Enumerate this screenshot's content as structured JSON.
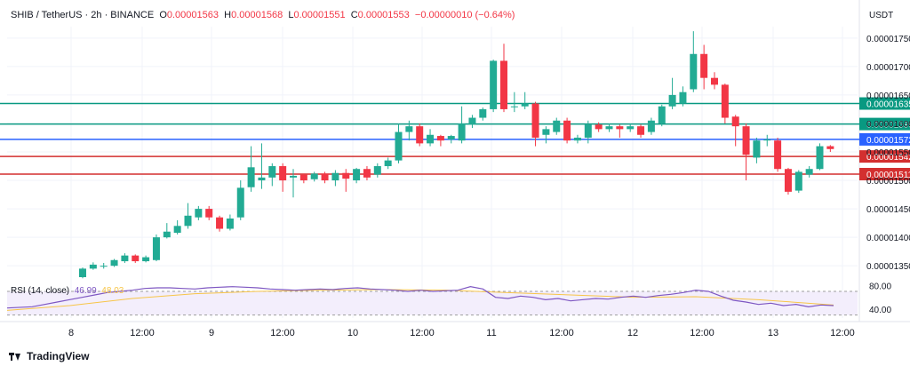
{
  "header": {
    "symbol": "SHIB / TetherUS · 2h · BINANCE",
    "open_label": "O",
    "open": "0.00001563",
    "high_label": "H",
    "high": "0.00001568",
    "low_label": "L",
    "low": "0.00001551",
    "close_label": "C",
    "close": "0.00001553",
    "change": "−0.00000010 (−0.64%)"
  },
  "unit": "USDT",
  "rsi": {
    "label": "RSI (14, close)",
    "value1": "46.99",
    "value2": "48.03"
  },
  "brand": "TradingView",
  "colors": {
    "up": "#22ab94",
    "down": "#f23645",
    "rsi": "#7e57c2",
    "rsi_ma": "#f7c548",
    "support_green": "#089981",
    "pivot_blue": "#2962ff",
    "resist_red": "#d32f2f"
  },
  "chart_data": {
    "type": "candlestick",
    "ylim": [
      1.33e-05,
      1.77e-05
    ],
    "y_ticks": [
      "0.00001750",
      "0.00001700",
      "0.00001650",
      "0.00001600",
      "0.00001550",
      "0.00001500",
      "0.00001450",
      "0.00001400",
      "0.00001350"
    ],
    "x_ticks": [
      "8",
      "12:00",
      "9",
      "12:00",
      "10",
      "12:00",
      "11",
      "12:00",
      "12",
      "12:00",
      "13",
      "12:00"
    ],
    "levels": [
      {
        "value": 1.635e-05,
        "label": "0.00001635",
        "color": "#089981"
      },
      {
        "value": 1.599e-05,
        "label": "0.00001599",
        "color": "#089981"
      },
      {
        "value": 1.572e-05,
        "label": "0.00001572",
        "color": "#2962ff"
      },
      {
        "value": 1.542e-05,
        "label": "0.00001542",
        "color": "#d32f2f"
      },
      {
        "value": 1.511e-05,
        "label": "0.00001511",
        "color": "#d32f2f"
      }
    ],
    "candles": [
      [
        1.0,
        1.33e-05,
        1.345e-05,
        1.328e-05,
        1.347e-05
      ],
      [
        2.0,
        1.345e-05,
        1.352e-05,
        1.343e-05,
        1.356e-05
      ],
      [
        3.0,
        1.35e-05,
        1.35e-05,
        1.345e-05,
        1.355e-05
      ],
      [
        4.0,
        1.35e-05,
        1.36e-05,
        1.348e-05,
        1.362e-05
      ],
      [
        5.0,
        1.358e-05,
        1.368e-05,
        1.355e-05,
        1.372e-05
      ],
      [
        6.0,
        1.368e-05,
        1.358e-05,
        1.355e-05,
        1.37e-05
      ],
      [
        7.0,
        1.358e-05,
        1.365e-05,
        1.356e-05,
        1.368e-05
      ],
      [
        8.0,
        1.36e-05,
        1.4e-05,
        1.358e-05,
        1.405e-05
      ],
      [
        9.0,
        1.4e-05,
        1.41e-05,
        1.398e-05,
        1.425e-05
      ],
      [
        10.0,
        1.408e-05,
        1.42e-05,
        1.405e-05,
        1.43e-05
      ],
      [
        11.0,
        1.42e-05,
        1.438e-05,
        1.415e-05,
        1.46e-05
      ],
      [
        12.0,
        1.435e-05,
        1.45e-05,
        1.43e-05,
        1.455e-05
      ],
      [
        13.0,
        1.45e-05,
        1.435e-05,
        1.43e-05,
        1.455e-05
      ],
      [
        14.0,
        1.435e-05,
        1.415e-05,
        1.41e-05,
        1.438e-05
      ],
      [
        15.0,
        1.415e-05,
        1.433e-05,
        1.412e-05,
        1.44e-05
      ],
      [
        16.0,
        1.435e-05,
        1.487e-05,
        1.43e-05,
        1.5e-05
      ],
      [
        17.0,
        1.488e-05,
        1.523e-05,
        1.48e-05,
        1.56e-05
      ],
      [
        18.0,
        1.5e-05,
        1.505e-05,
        1.485e-05,
        1.565e-05
      ],
      [
        19.0,
        1.505e-05,
        1.525e-05,
        1.49e-05,
        1.53e-05
      ],
      [
        20.0,
        1.525e-05,
        1.5e-05,
        1.48e-05,
        1.53e-05
      ],
      [
        21.0,
        1.505e-05,
        1.508e-05,
        1.47e-05,
        1.52e-05
      ],
      [
        22.0,
        1.51e-05,
        1.5e-05,
        1.495e-05,
        1.512e-05
      ],
      [
        23.0,
        1.502e-05,
        1.512e-05,
        1.498e-05,
        1.515e-05
      ],
      [
        24.0,
        1.512e-05,
        1.5e-05,
        1.495e-05,
        1.515e-05
      ],
      [
        25.0,
        1.5e-05,
        1.513e-05,
        1.49e-05,
        1.518e-05
      ],
      [
        26.0,
        1.513e-05,
        1.503e-05,
        1.48e-05,
        1.52e-05
      ],
      [
        27.0,
        1.5e-05,
        1.52e-05,
        1.495e-05,
        1.522e-05
      ],
      [
        28.0,
        1.52e-05,
        1.505e-05,
        1.5e-05,
        1.525e-05
      ],
      [
        29.0,
        1.51e-05,
        1.525e-05,
        1.505e-05,
        1.53e-05
      ],
      [
        30.0,
        1.525e-05,
        1.535e-05,
        1.52e-05,
        1.54e-05
      ],
      [
        31.0,
        1.535e-05,
        1.585e-05,
        1.53e-05,
        1.6e-05
      ],
      [
        32.0,
        1.585e-05,
        1.595e-05,
        1.57e-05,
        1.605e-05
      ],
      [
        33.0,
        1.595e-05,
        1.565e-05,
        1.56e-05,
        1.6e-05
      ],
      [
        34.0,
        1.565e-05,
        1.58e-05,
        1.56e-05,
        1.59e-05
      ],
      [
        35.0,
        1.578e-05,
        1.57e-05,
        1.56e-05,
        1.58e-05
      ],
      [
        36.0,
        1.572e-05,
        1.578e-05,
        1.565e-05,
        1.58e-05
      ],
      [
        37.0,
        1.57e-05,
        1.6e-05,
        1.565e-05,
        1.63e-05
      ],
      [
        38.0,
        1.598e-05,
        1.61e-05,
        1.592e-05,
        1.615e-05
      ],
      [
        39.0,
        1.61e-05,
        1.625e-05,
        1.605e-05,
        1.628e-05
      ],
      [
        40.0,
        1.625e-05,
        1.71e-05,
        1.62e-05,
        1.712e-05
      ],
      [
        41.0,
        1.71e-05,
        1.625e-05,
        1.62e-05,
        1.74e-05
      ],
      [
        42.0,
        1.63e-05,
        1.63e-05,
        1.62e-05,
        1.655e-05
      ],
      [
        43.0,
        1.63e-05,
        1.635e-05,
        1.625e-05,
        1.655e-05
      ],
      [
        44.0,
        1.635e-05,
        1.575e-05,
        1.56e-05,
        1.638e-05
      ],
      [
        45.0,
        1.58e-05,
        1.59e-05,
        1.565e-05,
        1.595e-05
      ],
      [
        46.0,
        1.585e-05,
        1.605e-05,
        1.58e-05,
        1.61e-05
      ],
      [
        47.0,
        1.605e-05,
        1.57e-05,
        1.565e-05,
        1.61e-05
      ],
      [
        48.0,
        1.57e-05,
        1.575e-05,
        1.565e-05,
        1.58e-05
      ],
      [
        49.0,
        1.575e-05,
        1.598e-05,
        1.565e-05,
        1.605e-05
      ],
      [
        50.0,
        1.598e-05,
        1.59e-05,
        1.585e-05,
        1.602e-05
      ],
      [
        51.0,
        1.59e-05,
        1.595e-05,
        1.585e-05,
        1.6e-05
      ],
      [
        52.0,
        1.595e-05,
        1.59e-05,
        1.575e-05,
        1.598e-05
      ],
      [
        53.0,
        1.59e-05,
        1.595e-05,
        1.585e-05,
        1.6e-05
      ],
      [
        54.0,
        1.595e-05,
        1.58e-05,
        1.575e-05,
        1.598e-05
      ],
      [
        55.0,
        1.585e-05,
        1.605e-05,
        1.58e-05,
        1.61e-05
      ],
      [
        56.0,
        1.6e-05,
        1.63e-05,
        1.595e-05,
        1.633e-05
      ],
      [
        57.0,
        1.63e-05,
        1.65e-05,
        1.625e-05,
        1.68e-05
      ],
      [
        58.0,
        1.635e-05,
        1.655e-05,
        1.63e-05,
        1.665e-05
      ],
      [
        59.0,
        1.66e-05,
        1.722e-05,
        1.655e-05,
        1.762e-05
      ],
      [
        60.0,
        1.722e-05,
        1.68e-05,
        1.66e-05,
        1.738e-05
      ],
      [
        61.0,
        1.68e-05,
        1.668e-05,
        1.66e-05,
        1.69e-05
      ],
      [
        62.0,
        1.668e-05,
        1.61e-05,
        1.6e-05,
        1.67e-05
      ],
      [
        63.0,
        1.612e-05,
        1.595e-05,
        1.56e-05,
        1.615e-05
      ],
      [
        64.0,
        1.595e-05,
        1.545e-05,
        1.5e-05,
        1.6e-05
      ],
      [
        65.0,
        1.54e-05,
        1.57e-05,
        1.53e-05,
        1.575e-05
      ],
      [
        66.0,
        1.57e-05,
        1.572e-05,
        1.56e-05,
        1.58e-05
      ],
      [
        67.0,
        1.57e-05,
        1.52e-05,
        1.515e-05,
        1.575e-05
      ],
      [
        68.0,
        1.52e-05,
        1.48e-05,
        1.475e-05,
        1.522e-05
      ],
      [
        69.0,
        1.482e-05,
        1.515e-05,
        1.478e-05,
        1.518e-05
      ],
      [
        70.0,
        1.51e-05,
        1.52e-05,
        1.505e-05,
        1.525e-05
      ],
      [
        71.0,
        1.52e-05,
        1.56e-05,
        1.518e-05,
        1.565e-05
      ],
      [
        72.0,
        1.56e-05,
        1.555e-05,
        1.55e-05,
        1.562e-05
      ]
    ],
    "rsi_ticks": [
      "80.00",
      "40.00"
    ],
    "rsi_band": [
      30,
      70
    ],
    "rsi_ylim": [
      25,
      85
    ],
    "rsi_line": [
      [
        0,
        42
      ],
      [
        4,
        44
      ],
      [
        6,
        48
      ],
      [
        8,
        52
      ],
      [
        10,
        56
      ],
      [
        12,
        60
      ],
      [
        14,
        64
      ],
      [
        16,
        68
      ],
      [
        18,
        70
      ],
      [
        20,
        72
      ],
      [
        22,
        75
      ],
      [
        24,
        76
      ],
      [
        26,
        76
      ],
      [
        28,
        75
      ],
      [
        30,
        74
      ],
      [
        32,
        76
      ],
      [
        34,
        77
      ],
      [
        36,
        78
      ],
      [
        38,
        77
      ],
      [
        40,
        76
      ],
      [
        42,
        74
      ],
      [
        44,
        73
      ],
      [
        46,
        72
      ],
      [
        48,
        73
      ],
      [
        50,
        74
      ],
      [
        52,
        73
      ],
      [
        54,
        75
      ],
      [
        56,
        76
      ],
      [
        58,
        74
      ],
      [
        60,
        73
      ],
      [
        62,
        72
      ],
      [
        64,
        70
      ],
      [
        66,
        72
      ],
      [
        68,
        70
      ],
      [
        70,
        71
      ],
      [
        72,
        72
      ],
      [
        74,
        78
      ],
      [
        76,
        74
      ],
      [
        78,
        60
      ],
      [
        80,
        58
      ],
      [
        82,
        62
      ],
      [
        84,
        60
      ],
      [
        86,
        56
      ],
      [
        88,
        58
      ],
      [
        90,
        54
      ],
      [
        92,
        56
      ],
      [
        94,
        58
      ],
      [
        96,
        57
      ],
      [
        98,
        60
      ],
      [
        100,
        62
      ],
      [
        102,
        60
      ],
      [
        104,
        63
      ],
      [
        106,
        65
      ],
      [
        108,
        68
      ],
      [
        110,
        72
      ],
      [
        112,
        70
      ],
      [
        114,
        62
      ],
      [
        116,
        55
      ],
      [
        118,
        52
      ],
      [
        120,
        48
      ],
      [
        122,
        50
      ],
      [
        124,
        46
      ],
      [
        126,
        48
      ],
      [
        128,
        44
      ],
      [
        130,
        47
      ],
      [
        132,
        46
      ]
    ],
    "rsi_ma": [
      [
        0,
        38
      ],
      [
        10,
        46
      ],
      [
        20,
        58
      ],
      [
        30,
        66
      ],
      [
        40,
        70
      ],
      [
        50,
        72
      ],
      [
        60,
        73
      ],
      [
        70,
        72
      ],
      [
        80,
        68
      ],
      [
        90,
        64
      ],
      [
        100,
        60
      ],
      [
        110,
        61
      ],
      [
        120,
        56
      ],
      [
        132,
        47
      ]
    ]
  }
}
